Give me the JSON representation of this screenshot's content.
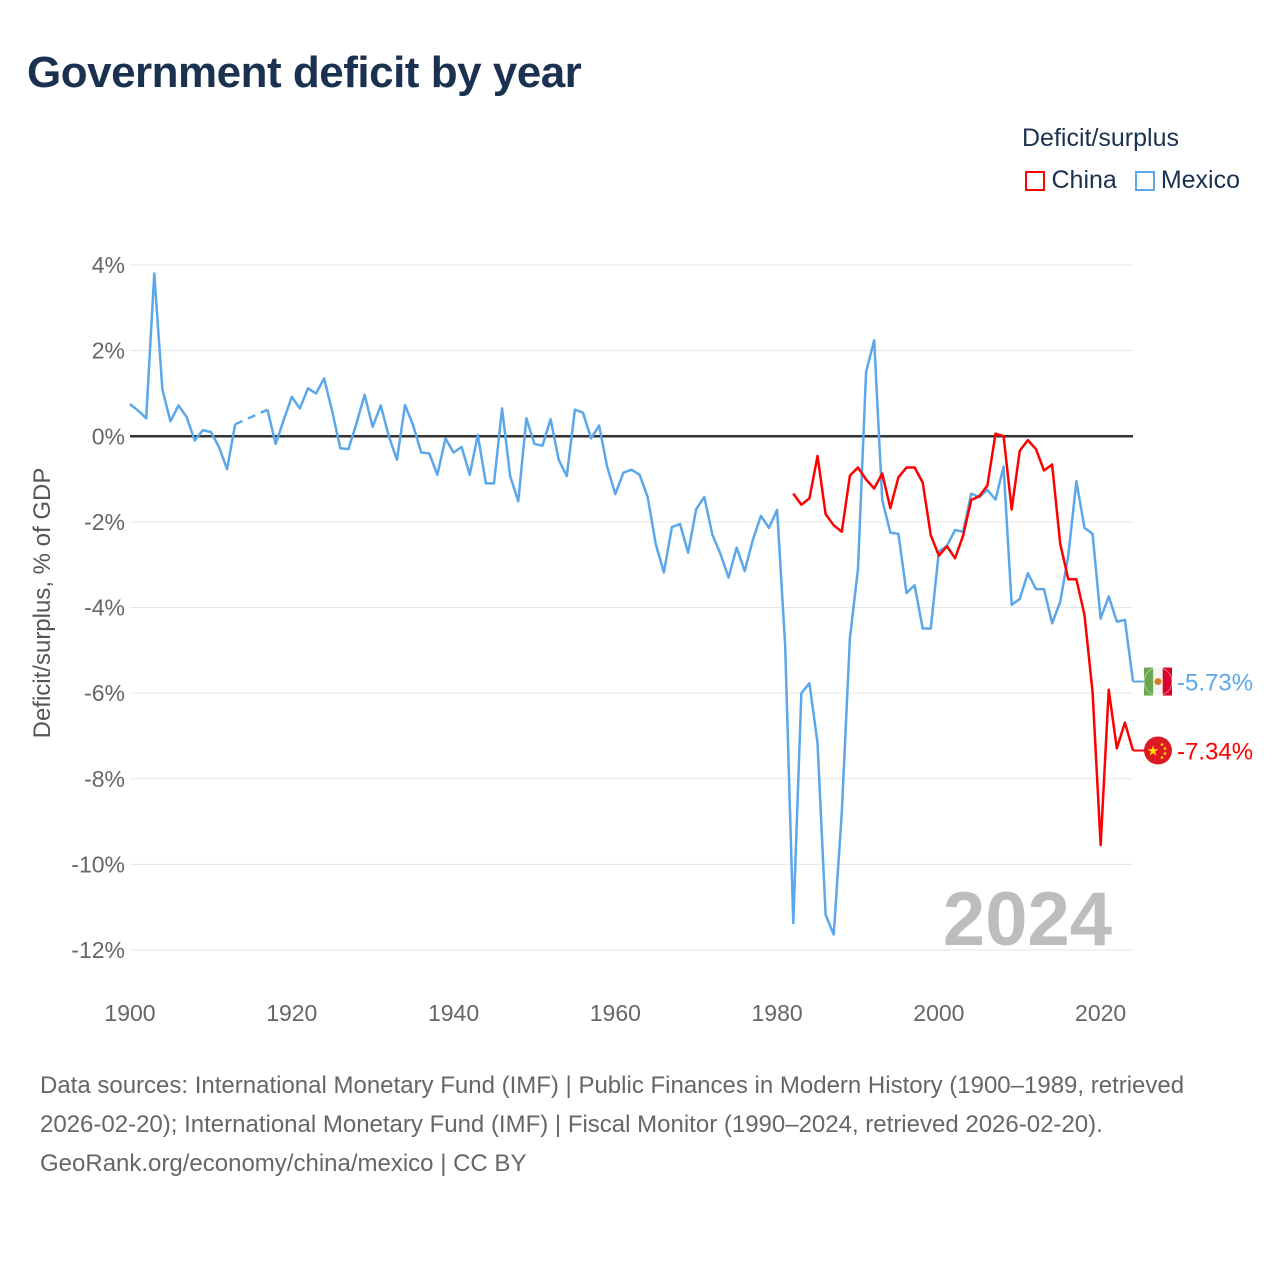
{
  "title": "Government deficit by year",
  "legend": {
    "title": "Deficit/surplus",
    "items": [
      {
        "name": "China",
        "color": "#ff0000"
      },
      {
        "name": "Mexico",
        "color": "#5ba7ea"
      }
    ]
  },
  "footer": {
    "sources": "Data sources: International Monetary Fund (IMF) | Public Finances in Modern History (1900–1989, retrieved 2026-02-20); International Monetary Fund (IMF) | Fiscal Monitor (1990–2024, retrieved 2026-02-20).",
    "credit": "GeoRank.org/economy/china/mexico | CC BY"
  },
  "chart_data": {
    "type": "line",
    "title": "Government deficit by year",
    "xlabel": "",
    "ylabel": "Deficit/surplus, % of GDP",
    "xlim": [
      1900,
      2024
    ],
    "ylim": [
      -12,
      4
    ],
    "yticks": [
      4,
      2,
      0,
      -2,
      -4,
      -6,
      -8,
      -10,
      -12
    ],
    "ytick_labels": [
      "4%",
      "2%",
      "0%",
      "-2%",
      "-4%",
      "-6%",
      "-8%",
      "-10%",
      "-12%"
    ],
    "xticks": [
      1900,
      1920,
      1940,
      1960,
      1980,
      2000,
      2020
    ],
    "xtick_labels": [
      "1900",
      "1920",
      "1940",
      "1960",
      "1980",
      "2000",
      "2020"
    ],
    "grid": true,
    "legend_position": "top-right",
    "year_watermark": "2024",
    "series": [
      {
        "name": "Mexico",
        "color": "#5ba7ea",
        "start_year": 1900,
        "end_label": "-5.73%",
        "values": [
          0.75,
          0.6,
          0.42,
          3.8,
          1.1,
          0.35,
          0.72,
          0.45,
          -0.1,
          0.14,
          0.1,
          -0.25,
          -0.77,
          0.28,
          null,
          null,
          null,
          0.62,
          -0.18,
          0.38,
          0.92,
          0.65,
          1.12,
          1.0,
          1.35,
          0.58,
          -0.28,
          -0.3,
          0.3,
          0.97,
          0.22,
          0.72,
          0,
          -0.55,
          0.73,
          0.26,
          -0.38,
          -0.4,
          -0.9,
          -0.05,
          -0.38,
          -0.25,
          -0.9,
          0.03,
          -1.1,
          -1.1,
          0.65,
          -0.93,
          -1.52,
          0.42,
          -0.18,
          -0.22,
          0.4,
          -0.55,
          -0.93,
          0.62,
          0.55,
          -0.05,
          0.25,
          -0.72,
          -1.35,
          -0.85,
          -0.78,
          -0.9,
          -1.42,
          -2.52,
          -3.18,
          -2.12,
          -2.05,
          -2.72,
          -1.7,
          -1.42,
          -2.3,
          -2.75,
          -3.3,
          -2.6,
          -3.15,
          -2.42,
          -1.86,
          -2.14,
          -1.72,
          -4.9,
          -11.37,
          -6.0,
          -5.77,
          -7.17,
          -11.18,
          -11.64,
          -8.78,
          -4.72,
          -3.1,
          1.5,
          2.24,
          -1.49,
          -2.25,
          -2.28,
          -3.66,
          -3.48,
          -4.49,
          -4.49,
          -2.69,
          -2.56,
          -2.19,
          -2.23,
          -1.34,
          -1.42,
          -1.25,
          -1.48,
          -0.71,
          -3.94,
          -3.8,
          -3.2,
          -3.57,
          -3.57,
          -4.37,
          -3.87,
          -2.79,
          -1.05,
          -2.14,
          -2.28,
          -4.26,
          -3.74,
          -4.33,
          -4.29,
          -5.73
        ]
      },
      {
        "name": "China",
        "color": "#ff0000",
        "start_year": 1982,
        "end_label": "-7.34%",
        "values": [
          -1.34,
          -1.6,
          -1.45,
          -0.46,
          -1.82,
          -2.08,
          -2.23,
          -0.92,
          -0.73,
          -1.01,
          -1.22,
          -0.87,
          -1.68,
          -0.96,
          -0.73,
          -0.73,
          -1.08,
          -2.31,
          -2.79,
          -2.57,
          -2.85,
          -2.32,
          -1.49,
          -1.4,
          -1.15,
          0.06,
          0,
          -1.71,
          -0.34,
          -0.09,
          -0.3,
          -0.8,
          -0.66,
          -2.51,
          -3.34,
          -3.34,
          -4.17,
          -5.97,
          -9.55,
          -5.92,
          -7.29,
          -6.69,
          -7.34
        ]
      }
    ]
  }
}
